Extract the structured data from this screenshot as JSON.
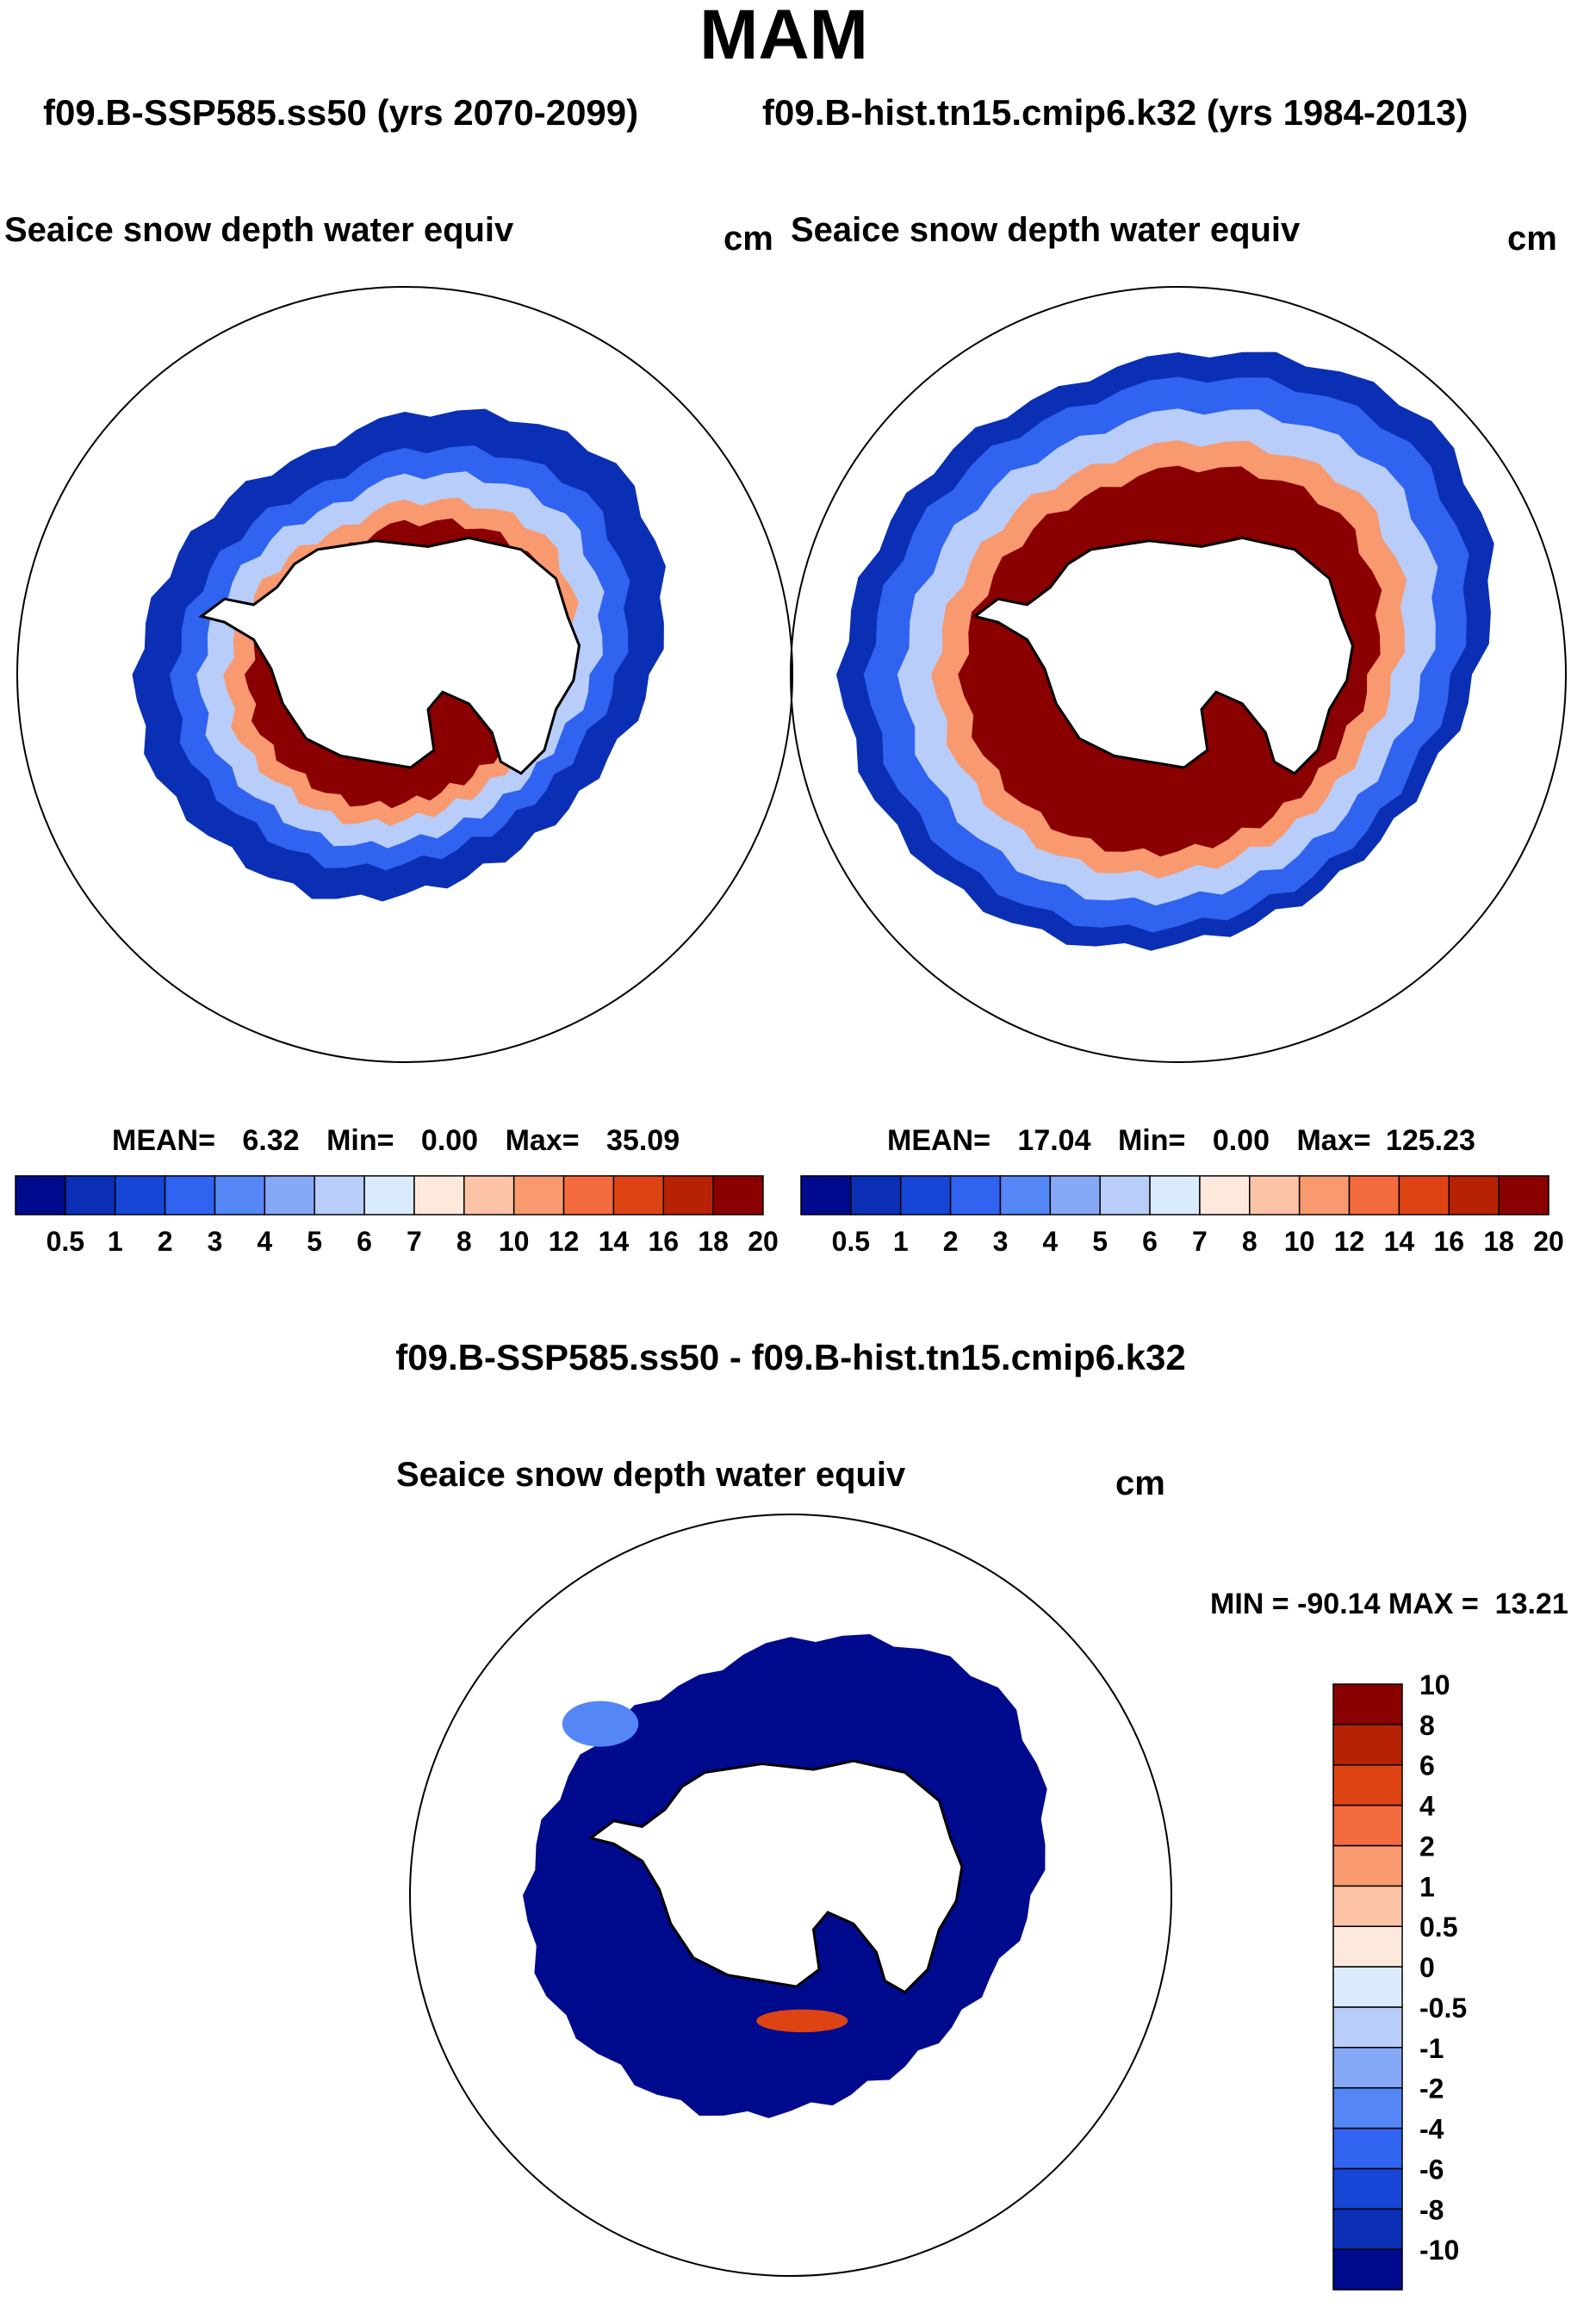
{
  "figure": {
    "season": "MAM",
    "case_label": "f09.B-SSP585.ss50 (yrs 2070-2099)",
    "ref_label": "f09.B-hist.tn15.cmip6.k32 (yrs 1984-2013)",
    "diff_title": "f09.B-SSP585.ss50 - f09.B-hist.tn15.cmip6.k32",
    "variable": "Seaice snow depth water equiv",
    "units": "cm"
  },
  "chart_data": [
    {
      "type": "heatmap",
      "projection": "south-polar-stereographic",
      "title": "Seaice snow depth water equiv",
      "units": "cm",
      "period": "f09.B-SSP585.ss50 (yrs 2070-2099)",
      "stats": {
        "mean_label": "MEAN=",
        "mean": "6.32",
        "min_label": "Min=",
        "min": "0.00",
        "max_label": "Max=",
        "max": "35.09"
      },
      "colorbar_levels": [
        "0.5",
        "1",
        "2",
        "3",
        "4",
        "5",
        "6",
        "7",
        "8",
        "10",
        "12",
        "14",
        "16",
        "18",
        "20"
      ],
      "colorbar_colors": [
        "#000a8c",
        "#0a2fb4",
        "#1746d6",
        "#2f63f0",
        "#5586f5",
        "#86a9f7",
        "#b8cdf9",
        "#d9ebfd",
        "#fde9dc",
        "#fcc3a6",
        "#f8996f",
        "#f36a3f",
        "#de4413",
        "#b72205",
        "#8a0000"
      ],
      "ice_edge_radius_deg": [
        26,
        28,
        30,
        28,
        25,
        22,
        21,
        21,
        22,
        24,
        25,
        27,
        27,
        26,
        25,
        24
      ],
      "thickness_field_pattern": "thick snow (16-20+) in Weddell Sea and Ross/Amundsen sector, thin (<1) near ice edge"
    },
    {
      "type": "heatmap",
      "projection": "south-polar-stereographic",
      "title": "Seaice snow depth water equiv",
      "units": "cm",
      "period": "f09.B-hist.tn15.cmip6.k32 (yrs 1984-2013)",
      "stats": {
        "mean_label": "MEAN=",
        "mean": "17.04",
        "min_label": "Min=",
        "min": "0.00",
        "max_label": "Max=",
        "max": "125.23"
      },
      "colorbar_levels": [
        "0.5",
        "1",
        "2",
        "3",
        "4",
        "5",
        "6",
        "7",
        "8",
        "10",
        "12",
        "14",
        "16",
        "18",
        "20"
      ],
      "colorbar_colors": [
        "#000a8c",
        "#0a2fb4",
        "#1746d6",
        "#2f63f0",
        "#5586f5",
        "#86a9f7",
        "#b8cdf9",
        "#d9ebfd",
        "#fde9dc",
        "#fcc3a6",
        "#f8996f",
        "#f36a3f",
        "#de4413",
        "#b72205",
        "#8a0000"
      ],
      "ice_edge_radius_deg": [
        32,
        34,
        36,
        34,
        30,
        27,
        26,
        26,
        27,
        29,
        31,
        33,
        34,
        33,
        32,
        31
      ],
      "thickness_field_pattern": "broad band of >20 cm around the continent, thin (<1) near ice edge"
    },
    {
      "type": "heatmap",
      "projection": "south-polar-stereographic",
      "title": "Seaice snow depth water equiv",
      "units": "cm",
      "period": "f09.B-SSP585.ss50 - f09.B-hist.tn15.cmip6.k32",
      "stats": {
        "label": "MIN = -90.14 MAX =  13.21",
        "min": -90.14,
        "max": 13.21
      },
      "colorbar_levels": [
        "-10",
        "-8",
        "-6",
        "-4",
        "-2",
        "-1",
        "-0.5",
        "0",
        "0.5",
        "1",
        "2",
        "4",
        "6",
        "8",
        "10"
      ],
      "colorbar_colors": [
        "#000a8c",
        "#0a2fb4",
        "#1746d6",
        "#2f63f0",
        "#5586f5",
        "#86a9f7",
        "#b8cdf9",
        "#d9ebfd",
        "#fde9dc",
        "#fcc3a6",
        "#f8996f",
        "#f36a3f",
        "#de4413",
        "#b72205",
        "#8a0000"
      ],
      "ice_edge_radius_deg": [
        26,
        28,
        30,
        28,
        25,
        22,
        21,
        21,
        22,
        24,
        25,
        27,
        27,
        26,
        25,
        24
      ],
      "thickness_field_pattern": "mostly below -10 everywhere, small positive patch (+4 to +10) near the Amundsen coast"
    }
  ]
}
